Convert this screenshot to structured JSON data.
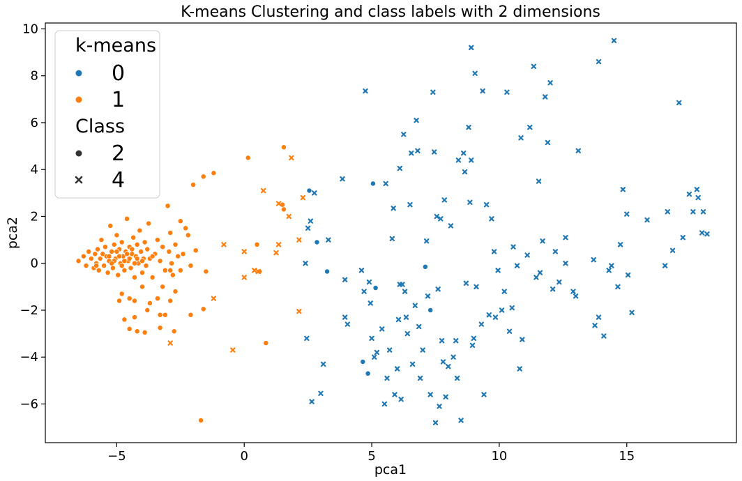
{
  "chart_data": {
    "type": "scatter",
    "title": "K-means Clustering and class labels with 2 dimensions",
    "xlabel": "pca1",
    "ylabel": "pca2",
    "xlim": [
      -7.8,
      19.3
    ],
    "ylim": [
      -7.65,
      10.25
    ],
    "xticks": [
      -5,
      0,
      5,
      10,
      15
    ],
    "yticks": [
      -6,
      -4,
      -2,
      0,
      2,
      4,
      6,
      8,
      10
    ],
    "grid": false,
    "legend_position": "top-left",
    "hue_title": "k-means",
    "style_title": "Class",
    "hue_levels": [
      "0",
      "1"
    ],
    "style_levels": [
      "2",
      "4"
    ],
    "colors": {
      "0": "#1f77b4",
      "1": "#ff7f0e",
      "style_key": "#333333"
    },
    "markers": {
      "2": "circle",
      "4": "x"
    },
    "series": [
      {
        "kmeans": "1",
        "class": "2",
        "points": [
          [
            -6.5,
            0.1
          ],
          [
            -6.3,
            0.3
          ],
          [
            -6.2,
            -0.1
          ],
          [
            -6.1,
            0.5
          ],
          [
            -6.0,
            0.2
          ],
          [
            -5.9,
            -0.2
          ],
          [
            -5.85,
            0.4
          ],
          [
            -5.8,
            0.0
          ],
          [
            -5.75,
            0.6
          ],
          [
            -5.7,
            -0.3
          ],
          [
            -5.65,
            0.2
          ],
          [
            -5.6,
            1.0
          ],
          [
            -5.55,
            0.4
          ],
          [
            -5.5,
            -0.1
          ],
          [
            -5.45,
            0.7
          ],
          [
            -5.4,
            0.3
          ],
          [
            -5.35,
            -0.4
          ],
          [
            -5.3,
            0.1
          ],
          [
            -5.25,
            1.6
          ],
          [
            -5.2,
            0.5
          ],
          [
            -5.15,
            -0.2
          ],
          [
            -5.1,
            0.8
          ],
          [
            -5.05,
            0.2
          ],
          [
            -5.0,
            1.2
          ],
          [
            -4.95,
            -0.5
          ],
          [
            -4.9,
            0.6
          ],
          [
            -4.85,
            0.0
          ],
          [
            -4.8,
            0.9
          ],
          [
            -4.75,
            0.3
          ],
          [
            -4.7,
            -0.3
          ],
          [
            -4.65,
            0.5
          ],
          [
            -4.6,
            1.9
          ],
          [
            -4.55,
            0.1
          ],
          [
            -4.5,
            0.7
          ],
          [
            -4.45,
            -0.2
          ],
          [
            -4.4,
            0.4
          ],
          [
            -4.35,
            1.1
          ],
          [
            -4.3,
            -0.6
          ],
          [
            -4.25,
            0.3
          ],
          [
            -4.2,
            0.8
          ],
          [
            -4.15,
            0.0
          ],
          [
            -4.1,
            1.4
          ],
          [
            -4.05,
            0.5
          ],
          [
            -4.0,
            -0.4
          ],
          [
            -3.95,
            0.2
          ],
          [
            -3.9,
            0.9
          ],
          [
            -3.85,
            -0.1
          ],
          [
            -3.8,
            0.6
          ],
          [
            -3.75,
            1.7
          ],
          [
            -3.7,
            0.2
          ],
          [
            -3.6,
            -0.6
          ],
          [
            -3.5,
            0.4
          ],
          [
            -3.4,
            1.0
          ],
          [
            -3.3,
            0.1
          ],
          [
            -3.2,
            0.7
          ],
          [
            -3.1,
            -0.3
          ],
          [
            -3.0,
            2.45
          ],
          [
            -2.95,
            0.5
          ],
          [
            -2.9,
            1.3
          ],
          [
            -2.85,
            0.0
          ],
          [
            -2.8,
            -0.5
          ],
          [
            -2.7,
            0.8
          ],
          [
            -2.6,
            0.3
          ],
          [
            -2.5,
            1.8
          ],
          [
            -2.4,
            0.4
          ],
          [
            -2.3,
            1.5
          ],
          [
            -2.2,
            1.2
          ],
          [
            -5.3,
            0.3
          ],
          [
            -5.1,
            0.1
          ],
          [
            -4.9,
            0.3
          ],
          [
            -4.7,
            0.1
          ],
          [
            -4.5,
            0.2
          ],
          [
            -4.3,
            0.0
          ],
          [
            -5.0,
            0.5
          ],
          [
            -4.8,
            -0.1
          ],
          [
            -4.6,
            0.4
          ],
          [
            -4.4,
            0.6
          ],
          [
            -4.2,
            0.2
          ],
          [
            -5.2,
            0.0
          ],
          [
            -4.0,
            0.1
          ],
          [
            -4.8,
            -1.3
          ],
          [
            -4.5,
            -1.5
          ],
          [
            -4.3,
            -1.6
          ],
          [
            -4.0,
            -1.0
          ],
          [
            -3.7,
            -1.7
          ],
          [
            -3.4,
            -1.5
          ],
          [
            -3.2,
            -1.0
          ],
          [
            -2.9,
            -0.3
          ],
          [
            -4.9,
            -1.6
          ],
          [
            -4.7,
            -2.4
          ],
          [
            -4.3,
            -2.3
          ],
          [
            -3.8,
            -2.0
          ],
          [
            -3.3,
            -2.2
          ],
          [
            -2.9,
            -1.6
          ],
          [
            -4.5,
            -2.8
          ],
          [
            -4.2,
            -2.9
          ],
          [
            -3.9,
            -2.95
          ],
          [
            -3.3,
            -2.75
          ],
          [
            -2.75,
            -2.9
          ],
          [
            -2.7,
            -1.2
          ],
          [
            -2.5,
            -0.3
          ],
          [
            -2.1,
            -0.1
          ],
          [
            -2.1,
            -2.2
          ],
          [
            -1.9,
            0.55
          ],
          [
            -1.6,
            -1.95
          ],
          [
            -1.5,
            -0.35
          ],
          [
            -2.0,
            3.35
          ],
          [
            -1.6,
            3.7
          ],
          [
            -1.2,
            3.85
          ],
          [
            0.15,
            4.5
          ],
          [
            1.55,
            4.95
          ],
          [
            1.55,
            2.3
          ],
          [
            0.5,
            0.8
          ],
          [
            0.6,
            -0.35
          ],
          [
            0.85,
            -3.4
          ],
          [
            -1.7,
            -6.7
          ],
          [
            1.5,
            2.5
          ],
          [
            -3.1,
            -2.2
          ],
          [
            -3.6,
            0.3
          ],
          [
            -5.8,
            -0.1
          ]
        ]
      },
      {
        "kmeans": "1",
        "class": "4",
        "points": [
          [
            -2.9,
            -3.4
          ],
          [
            -1.2,
            -1.5
          ],
          [
            -0.8,
            0.8
          ],
          [
            -0.45,
            -3.7
          ],
          [
            0.0,
            -0.6
          ],
          [
            0.0,
            0.5
          ],
          [
            0.4,
            -0.3
          ],
          [
            0.55,
            -0.35
          ],
          [
            0.75,
            3.1
          ],
          [
            1.25,
            0.45
          ],
          [
            1.35,
            0.8
          ],
          [
            1.35,
            2.55
          ],
          [
            1.75,
            2.0
          ],
          [
            1.85,
            4.5
          ],
          [
            2.15,
            1.0
          ],
          [
            2.15,
            -2.05
          ],
          [
            2.3,
            2.8
          ]
        ]
      },
      {
        "kmeans": "0",
        "class": "2",
        "points": [
          [
            2.55,
            3.1
          ],
          [
            2.85,
            0.9
          ],
          [
            3.25,
            -0.35
          ],
          [
            5.05,
            3.4
          ],
          [
            5.15,
            -1.05
          ],
          [
            4.65,
            -4.2
          ],
          [
            4.85,
            -4.7
          ],
          [
            7.1,
            -0.15
          ],
          [
            7.3,
            -2.0
          ]
        ]
      },
      {
        "kmeans": "0",
        "class": "4",
        "points": [
          [
            2.4,
            0.0
          ],
          [
            2.45,
            -3.2
          ],
          [
            2.5,
            1.5
          ],
          [
            2.6,
            1.8
          ],
          [
            2.65,
            -5.9
          ],
          [
            2.75,
            3.0
          ],
          [
            3.0,
            -5.55
          ],
          [
            3.1,
            -4.3
          ],
          [
            3.3,
            1.0
          ],
          [
            3.85,
            3.6
          ],
          [
            3.95,
            -0.7
          ],
          [
            3.95,
            -2.3
          ],
          [
            4.05,
            -2.6
          ],
          [
            4.6,
            -0.3
          ],
          [
            4.7,
            -1.2
          ],
          [
            4.75,
            7.35
          ],
          [
            4.9,
            -0.8
          ],
          [
            4.95,
            -1.7
          ],
          [
            5.0,
            -3.2
          ],
          [
            5.1,
            -4.0
          ],
          [
            5.2,
            -3.8
          ],
          [
            5.4,
            -2.8
          ],
          [
            5.5,
            -6.0
          ],
          [
            5.55,
            3.4
          ],
          [
            5.6,
            -4.9
          ],
          [
            5.7,
            -3.7
          ],
          [
            5.8,
            1.05
          ],
          [
            5.85,
            2.35
          ],
          [
            5.9,
            -5.6
          ],
          [
            6.0,
            -4.5
          ],
          [
            6.05,
            -2.4
          ],
          [
            6.1,
            4.05
          ],
          [
            6.15,
            -5.8
          ],
          [
            6.2,
            -0.9
          ],
          [
            6.25,
            5.5
          ],
          [
            6.3,
            -1.2
          ],
          [
            6.35,
            -2.3
          ],
          [
            6.4,
            -3.0
          ],
          [
            6.5,
            2.5
          ],
          [
            6.55,
            4.7
          ],
          [
            6.6,
            -4.3
          ],
          [
            6.7,
            -1.8
          ],
          [
            6.75,
            6.1
          ],
          [
            6.8,
            4.8
          ],
          [
            6.85,
            -2.7
          ],
          [
            6.9,
            -4.9
          ],
          [
            7.0,
            -3.7
          ],
          [
            7.15,
            0.95
          ],
          [
            7.2,
            -1.4
          ],
          [
            7.3,
            -5.6
          ],
          [
            7.4,
            7.3
          ],
          [
            7.45,
            4.75
          ],
          [
            7.5,
            -6.8
          ],
          [
            7.55,
            2.0
          ],
          [
            7.6,
            -1.1
          ],
          [
            7.65,
            -6.1
          ],
          [
            7.7,
            1.9
          ],
          [
            7.75,
            -3.3
          ],
          [
            7.8,
            -4.2
          ],
          [
            7.85,
            2.7
          ],
          [
            7.9,
            -5.7
          ],
          [
            8.0,
            -4.4
          ],
          [
            8.1,
            1.6
          ],
          [
            8.2,
            -4.0
          ],
          [
            8.3,
            -3.3
          ],
          [
            8.35,
            -4.9
          ],
          [
            8.4,
            4.4
          ],
          [
            8.5,
            -6.7
          ],
          [
            8.6,
            4.7
          ],
          [
            8.65,
            3.9
          ],
          [
            8.7,
            -0.85
          ],
          [
            8.8,
            5.8
          ],
          [
            8.85,
            2.6
          ],
          [
            8.9,
            4.4
          ],
          [
            8.95,
            -3.5
          ],
          [
            9.05,
            8.1
          ],
          [
            9.1,
            -1.0
          ],
          [
            9.3,
            -2.6
          ],
          [
            9.35,
            7.35
          ],
          [
            9.4,
            -5.6
          ],
          [
            9.5,
            2.5
          ],
          [
            9.6,
            -2.2
          ],
          [
            9.7,
            1.9
          ],
          [
            9.8,
            0.5
          ],
          [
            9.85,
            -2.3
          ],
          [
            9.95,
            -0.3
          ],
          [
            10.1,
            -2.0
          ],
          [
            10.2,
            -1.2
          ],
          [
            10.3,
            7.3
          ],
          [
            10.4,
            -2.9
          ],
          [
            10.55,
            0.7
          ],
          [
            10.7,
            -0.1
          ],
          [
            10.8,
            -4.5
          ],
          [
            10.85,
            5.35
          ],
          [
            10.9,
            -3.25
          ],
          [
            11.1,
            0.35
          ],
          [
            11.2,
            5.8
          ],
          [
            11.35,
            8.4
          ],
          [
            11.45,
            -0.6
          ],
          [
            11.55,
            3.5
          ],
          [
            11.7,
            0.95
          ],
          [
            11.8,
            7.1
          ],
          [
            11.9,
            5.15
          ],
          [
            12.0,
            7.7
          ],
          [
            12.1,
            -1.1
          ],
          [
            12.2,
            0.5
          ],
          [
            12.35,
            -0.8
          ],
          [
            12.6,
            0.0
          ],
          [
            12.9,
            -1.2
          ],
          [
            13.0,
            -1.4
          ],
          [
            13.1,
            4.8
          ],
          [
            13.7,
            0.15
          ],
          [
            13.75,
            -2.65
          ],
          [
            13.9,
            -2.3
          ],
          [
            14.1,
            -3.1
          ],
          [
            14.3,
            -0.3
          ],
          [
            14.4,
            -0.1
          ],
          [
            14.5,
            9.5
          ],
          [
            14.65,
            -1.0
          ],
          [
            14.75,
            0.8
          ],
          [
            14.85,
            3.15
          ],
          [
            15.0,
            2.1
          ],
          [
            15.05,
            -0.5
          ],
          [
            15.2,
            -2.1
          ],
          [
            15.8,
            1.85
          ],
          [
            16.5,
            -0.1
          ],
          [
            16.6,
            2.2
          ],
          [
            16.8,
            0.55
          ],
          [
            17.05,
            6.85
          ],
          [
            17.2,
            1.1
          ],
          [
            17.45,
            2.95
          ],
          [
            17.6,
            2.2
          ],
          [
            17.75,
            3.15
          ],
          [
            17.8,
            2.8
          ],
          [
            17.95,
            1.3
          ],
          [
            18.0,
            2.2
          ],
          [
            18.15,
            1.25
          ],
          [
            8.9,
            9.2
          ],
          [
            10.5,
            -1.9
          ],
          [
            13.9,
            8.6
          ],
          [
            12.6,
            1.1
          ],
          [
            11.6,
            -0.4
          ],
          [
            9.0,
            -3.2
          ],
          [
            6.1,
            -0.9
          ]
        ]
      }
    ]
  }
}
